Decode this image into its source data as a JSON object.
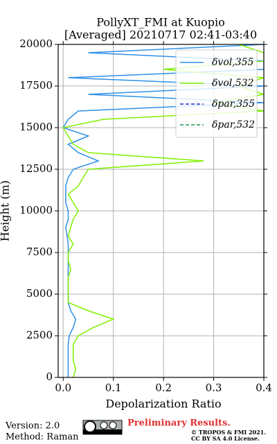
{
  "chart_data": {
    "type": "line",
    "title": "PollyXT_FMI at Kuopio",
    "subtitle": "[Averaged] 20210717 02:41-03:40",
    "x_label": "Depolarization Ratio",
    "y_label": "Height (m)",
    "heights": [
      0,
      500,
      1000,
      1500,
      2000,
      2500,
      3000,
      3500,
      4000,
      4500,
      5000,
      5500,
      6000,
      6500,
      7000,
      7500,
      8000,
      8500,
      9000,
      9500,
      10000,
      10500,
      11000,
      11500,
      12000,
      12500,
      13000,
      13500,
      14000,
      14500,
      15000,
      15500,
      16000,
      16500,
      17000,
      17500,
      18000,
      18500,
      19000,
      19500,
      20000
    ],
    "series": [
      {
        "name": "δvol,355",
        "color": "#2e8fe6",
        "dash": "solid",
        "values": [
          0.01,
          0.01,
          0.01,
          0.01,
          0.01,
          0.012,
          0.02,
          0.025,
          0.015,
          0.01,
          0.01,
          0.01,
          0.01,
          0.01,
          0.01,
          0.01,
          0.01,
          0.008,
          0.005,
          0.01,
          0.01,
          0.005,
          0.005,
          0.005,
          0.01,
          0.02,
          0.07,
          0.03,
          0.01,
          0.05,
          0,
          0.01,
          0.03,
          0.4,
          0.05,
          0.4,
          0.01,
          0.4,
          0.4,
          0.05,
          0.4
        ]
      },
      {
        "name": "δvol,532",
        "color": "#80f000",
        "dash": "solid",
        "values": [
          0.02,
          0.025,
          0.02,
          0.02,
          0.02,
          0.03,
          0.06,
          0.1,
          0.05,
          0.01,
          0.01,
          0.01,
          0.01,
          0.015,
          0.01,
          0.01,
          0.02,
          0.01,
          0.015,
          0.02,
          0.03,
          0.02,
          0.01,
          0.03,
          0.04,
          0.05,
          0.28,
          0.05,
          0.02,
          0.01,
          0,
          0.08,
          0.4,
          0.3,
          0.4,
          0.35,
          0.4,
          0.2,
          0.4,
          0.4,
          0.35
        ]
      },
      {
        "name": "δpar,355",
        "color": "#1a2fd0",
        "dash": "dashed",
        "values": [
          null,
          null,
          null,
          null,
          null,
          null,
          null,
          null,
          null,
          null,
          null,
          null,
          null,
          null,
          null,
          null,
          null,
          null,
          null,
          null,
          null,
          null,
          null,
          null,
          null,
          null,
          null,
          null,
          null,
          null,
          null,
          null,
          null,
          null,
          null,
          null,
          null,
          null,
          null,
          null,
          null
        ]
      },
      {
        "name": "δpar,532",
        "color": "#1a9a50",
        "dash": "dashed",
        "values": [
          null,
          null,
          null,
          null,
          null,
          null,
          null,
          null,
          null,
          null,
          null,
          null,
          null,
          null,
          null,
          null,
          null,
          null,
          null,
          null,
          null,
          null,
          null,
          null,
          null,
          null,
          null,
          null,
          null,
          null,
          null,
          null,
          null,
          null,
          null,
          null,
          null,
          null,
          null,
          null,
          null
        ]
      }
    ],
    "xlim": [
      -0.01,
      0.4
    ],
    "ylim": [
      0,
      20000
    ],
    "xticks": [
      {
        "value": 0,
        "label": "0.0"
      },
      0.1,
      0.2,
      0.3,
      0.4
    ],
    "yticks": [
      0,
      2500,
      5000,
      7500,
      10000,
      12500,
      15000,
      17500,
      20000
    ],
    "grid": true,
    "legend": "upper right"
  },
  "footer": {
    "version": "Version: 2.0",
    "method": "Method: Raman",
    "notice": "Preliminary Results.",
    "copyright": "© TROPOS & FMI 2021.",
    "license": "CC BY SA 4.0 License."
  }
}
